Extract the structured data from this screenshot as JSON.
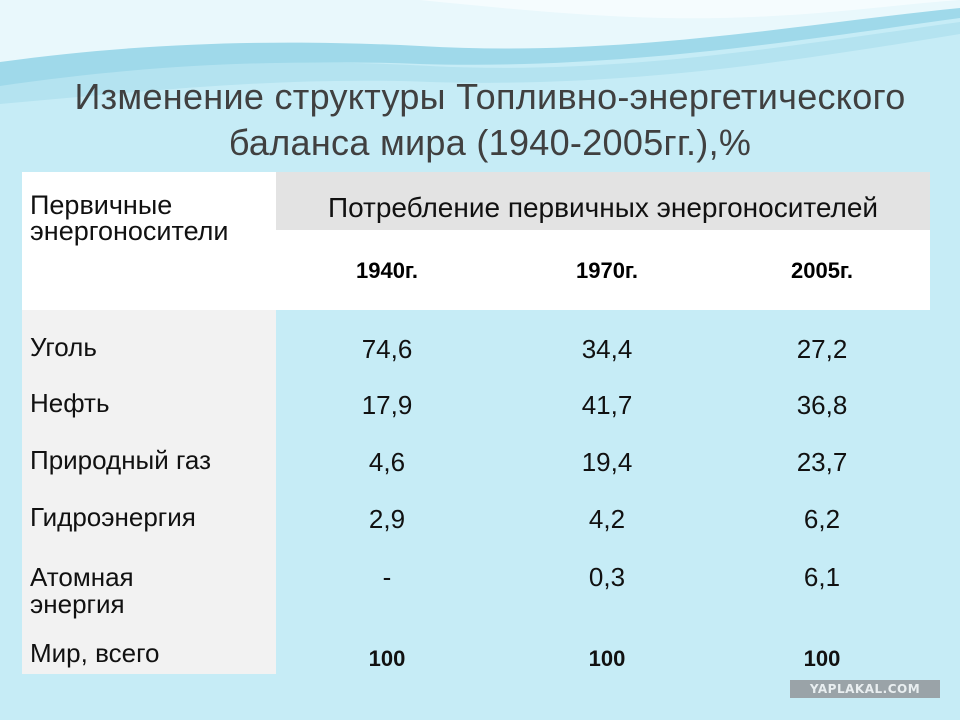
{
  "title": {
    "line1": "Изменение структуры Топливно-энергетического",
    "line2": "баланса мира (1940-2005гг.),%"
  },
  "table": {
    "row_header": [
      "Первичные",
      "энергоносители"
    ],
    "group_header": "Потребление первичных энергоносителей",
    "years": [
      "1940г.",
      "1970г.",
      "2005г."
    ],
    "rows": [
      {
        "label": [
          "Уголь"
        ],
        "values": [
          "74,6",
          "34,4",
          "27,2"
        ]
      },
      {
        "label": [
          "Нефть"
        ],
        "values": [
          "17,9",
          "41,7",
          "36,8"
        ]
      },
      {
        "label": [
          "Природный газ"
        ],
        "values": [
          "4,6",
          "19,4",
          "23,7"
        ]
      },
      {
        "label": [
          "Гидроэнергия"
        ],
        "values": [
          "2,9",
          "4,2",
          "6,2"
        ]
      },
      {
        "label": [
          "Атомная",
          "энергия"
        ],
        "values": [
          "-",
          "0,3",
          "6,1"
        ]
      },
      {
        "label": [
          "Мир, всего"
        ],
        "values": [
          "100",
          "100",
          "100"
        ]
      }
    ]
  },
  "watermark": "YAPLAKAL.COM",
  "colors": {
    "background": "#c6ecf6",
    "title": "#404040",
    "header_gray": "#e3e3e3",
    "label_col": "#f2f2f2"
  }
}
